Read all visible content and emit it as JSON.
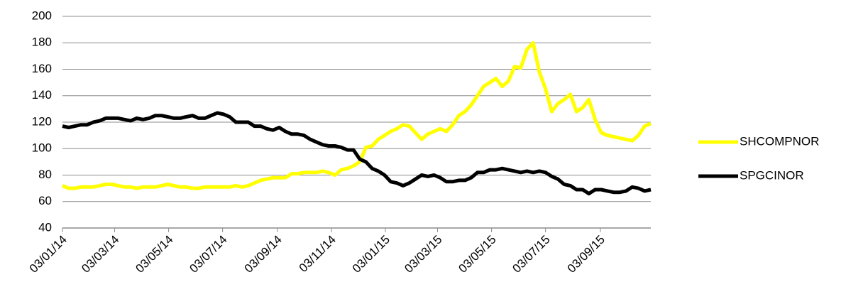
{
  "chart_data": {
    "type": "line",
    "x": [
      "03/01/14",
      "10/01/14",
      "17/01/14",
      "24/01/14",
      "31/01/14",
      "07/02/14",
      "14/02/14",
      "21/02/14",
      "28/02/14",
      "07/03/14",
      "14/03/14",
      "21/03/14",
      "28/03/14",
      "04/04/14",
      "11/04/14",
      "18/04/14",
      "25/04/14",
      "02/05/14",
      "09/05/14",
      "16/05/14",
      "23/05/14",
      "30/05/14",
      "06/06/14",
      "13/06/14",
      "20/06/14",
      "27/06/14",
      "04/07/14",
      "11/07/14",
      "18/07/14",
      "25/07/14",
      "01/08/14",
      "08/08/14",
      "15/08/14",
      "22/08/14",
      "29/08/14",
      "05/09/14",
      "12/09/14",
      "19/09/14",
      "26/09/14",
      "03/10/14",
      "10/10/14",
      "17/10/14",
      "24/10/14",
      "31/10/14",
      "07/11/14",
      "14/11/14",
      "21/11/14",
      "28/11/14",
      "05/12/14",
      "12/12/14",
      "19/12/14",
      "26/12/14",
      "02/01/15",
      "09/01/15",
      "16/01/15",
      "23/01/15",
      "30/01/15",
      "06/02/15",
      "13/02/15",
      "20/02/15",
      "27/02/15",
      "06/03/15",
      "13/03/15",
      "20/03/15",
      "27/03/15",
      "03/04/15",
      "10/04/15",
      "17/04/15",
      "24/04/15",
      "01/05/15",
      "08/05/15",
      "15/05/15",
      "22/05/15",
      "29/05/15",
      "05/06/15",
      "12/06/15",
      "19/06/15",
      "26/06/15",
      "03/07/15",
      "10/07/15",
      "17/07/15",
      "24/07/15",
      "31/07/15",
      "07/08/15",
      "14/08/15",
      "21/08/15",
      "28/08/15",
      "04/09/15",
      "11/09/15",
      "18/09/15",
      "25/09/15",
      "02/10/15",
      "09/10/15",
      "16/10/15",
      "23/10/15",
      "30/10/15"
    ],
    "series": [
      {
        "name": "SHCOMPNOR",
        "color": "#ffff00",
        "values": [
          72,
          70,
          70,
          71,
          71,
          71,
          72,
          73,
          73,
          72,
          71,
          71,
          70,
          71,
          71,
          71,
          72,
          73,
          72,
          71,
          71,
          70,
          70,
          71,
          71,
          71,
          71,
          71,
          72,
          71,
          72,
          74,
          76,
          77,
          78,
          78,
          78,
          81,
          81,
          82,
          82,
          82,
          83,
          82,
          80,
          84,
          85,
          87,
          90,
          101,
          102,
          107,
          110,
          113,
          115,
          118,
          117,
          112,
          107,
          111,
          113,
          115,
          113,
          118,
          125,
          128,
          133,
          140,
          147,
          150,
          153,
          147,
          151,
          162,
          161,
          175,
          180,
          158,
          145,
          128,
          134,
          137,
          141,
          128,
          131,
          137,
          122,
          112,
          110,
          109,
          108,
          107,
          106,
          110,
          117,
          119
        ]
      },
      {
        "name": "SPGCINOR",
        "color": "#000000",
        "values": [
          117,
          116,
          117,
          118,
          118,
          120,
          121,
          123,
          123,
          123,
          122,
          121,
          123,
          122,
          123,
          125,
          125,
          124,
          123,
          123,
          124,
          125,
          123,
          123,
          125,
          127,
          126,
          124,
          120,
          120,
          120,
          117,
          117,
          115,
          114,
          116,
          113,
          111,
          111,
          110,
          107,
          105,
          103,
          102,
          102,
          101,
          99,
          99,
          92,
          90,
          85,
          83,
          80,
          75,
          74,
          72,
          74,
          77,
          80,
          79,
          80,
          78,
          75,
          75,
          76,
          76,
          78,
          82,
          82,
          84,
          84,
          85,
          84,
          83,
          82,
          83,
          82,
          83,
          82,
          79,
          77,
          73,
          72,
          69,
          69,
          66,
          69,
          69,
          68,
          67,
          67,
          68,
          71,
          70,
          68,
          69
        ]
      }
    ],
    "xlim": [
      "03/01/14",
      "30/10/15"
    ],
    "xticks": [
      "03/01/14",
      "03/03/14",
      "03/05/14",
      "03/07/14",
      "03/09/14",
      "03/11/14",
      "03/01/15",
      "03/03/15",
      "03/05/15",
      "03/07/15",
      "03/09/15"
    ],
    "ylim": [
      40,
      200
    ],
    "yticks": [
      40,
      60,
      80,
      100,
      120,
      140,
      160,
      180,
      200
    ],
    "grid": true,
    "legend": "right"
  }
}
